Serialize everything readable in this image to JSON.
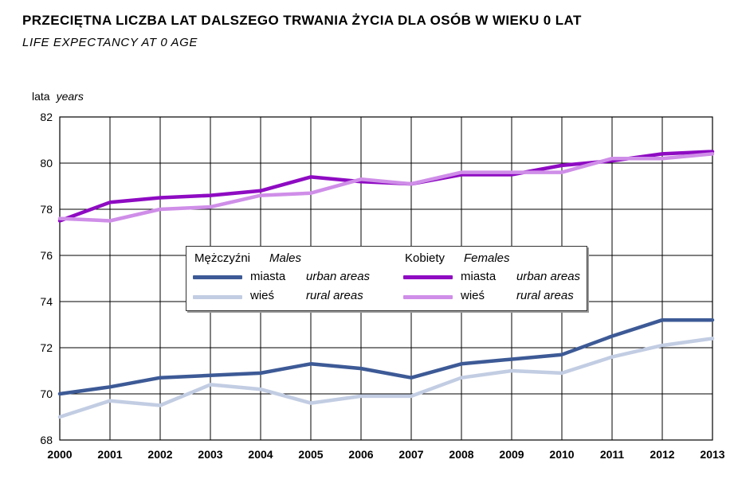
{
  "header": {
    "title": "PRZECIĘTNA LICZBA LAT DALSZEGO TRWANIA ŻYCIA DLA OSÓB W WIEKU 0 LAT",
    "subtitle": "LIFE EXPECTANCY AT 0 AGE"
  },
  "axis": {
    "ylabel_pl": "lata",
    "ylabel_en": "years"
  },
  "legend": {
    "males_pl": "Mężczyźni",
    "males_en": "Males",
    "females_pl": "Kobiety",
    "females_en": "Females",
    "urban_pl": "miasta",
    "urban_en": "urban areas",
    "rural_pl": "wieś",
    "rural_en": "rural areas"
  },
  "colors": {
    "males_urban": "#3d5a96",
    "males_rural": "#c2cde3",
    "females_urban": "#8e0bc2",
    "females_rural": "#cf8ee8",
    "grid": "#000000"
  },
  "chart_data": {
    "type": "line",
    "title": "PRZECIĘTNA LICZBA LAT DALSZEGO TRWANIA ŻYCIA DLA OSÓB W WIEKU 0 LAT",
    "subtitle": "LIFE EXPECTANCY AT 0 AGE",
    "xlabel": "",
    "ylabel": "lata years",
    "x": [
      2000,
      2001,
      2002,
      2003,
      2004,
      2005,
      2006,
      2007,
      2008,
      2009,
      2010,
      2011,
      2012,
      2013
    ],
    "ylim": [
      68,
      82
    ],
    "yticks": [
      68,
      70,
      72,
      74,
      76,
      78,
      80,
      82
    ],
    "grid": true,
    "legend_position": "center",
    "series": [
      {
        "name": "Mężczyźni miasta",
        "group": "males",
        "area": "urban",
        "values": [
          70.0,
          70.3,
          70.7,
          70.8,
          70.9,
          71.3,
          71.1,
          70.7,
          71.3,
          71.5,
          71.7,
          72.5,
          73.2,
          73.2
        ]
      },
      {
        "name": "Mężczyźni wieś",
        "group": "males",
        "area": "rural",
        "values": [
          69.0,
          69.7,
          69.5,
          70.4,
          70.2,
          69.6,
          69.9,
          69.9,
          70.7,
          71.0,
          70.9,
          71.6,
          72.1,
          72.4
        ]
      },
      {
        "name": "Kobiety miasta",
        "group": "females",
        "area": "urban",
        "values": [
          77.5,
          78.3,
          78.5,
          78.6,
          78.8,
          79.4,
          79.2,
          79.1,
          79.5,
          79.5,
          79.9,
          80.1,
          80.4,
          80.5
        ]
      },
      {
        "name": "Kobiety wieś",
        "group": "females",
        "area": "rural",
        "values": [
          77.6,
          77.5,
          78.0,
          78.1,
          78.6,
          78.7,
          79.3,
          79.1,
          79.6,
          79.6,
          79.6,
          80.2,
          80.2,
          80.4
        ]
      }
    ]
  }
}
